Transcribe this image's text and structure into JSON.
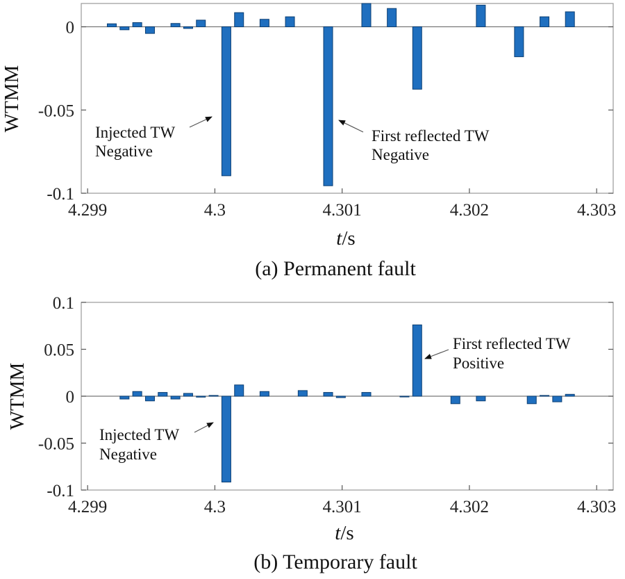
{
  "chart_data": [
    {
      "type": "bar",
      "panel": "a",
      "caption": "(a) Permanent fault",
      "ylabel": "WTMM",
      "xlabel_italic": "t",
      "xlabel_unit": "/s",
      "xlim": [
        4.29895,
        4.30313
      ],
      "ylim": [
        -0.1,
        0.014
      ],
      "xticks": [
        4.299,
        4.3,
        4.301,
        4.302,
        4.303
      ],
      "xtick_labels": [
        "4.299",
        "4.3",
        "4.301",
        "4.302",
        "4.303"
      ],
      "yticks": [
        0,
        -0.05,
        -0.1
      ],
      "ytick_labels": [
        "0",
        "-0.05",
        "-0.1"
      ],
      "bars": {
        "x": [
          4.29919,
          4.29929,
          4.29939,
          4.29949,
          4.29969,
          4.29979,
          4.29989,
          4.30009,
          4.30019,
          4.30039,
          4.30059,
          4.30089,
          4.30119,
          4.30139,
          4.30159,
          4.30209,
          4.30239,
          4.30259,
          4.30279
        ],
        "y": [
          0.0018,
          -0.0018,
          0.0025,
          -0.004,
          0.002,
          -0.001,
          0.004,
          -0.0895,
          0.0085,
          0.0045,
          0.006,
          -0.0955,
          0.014,
          0.011,
          -0.0375,
          0.013,
          -0.018,
          0.006,
          0.009
        ]
      },
      "annotations": [
        {
          "lines": [
            "Injected TW",
            "Negative"
          ],
          "target": [
            4.30009,
            -0.055
          ]
        },
        {
          "lines": [
            "First reflected TW",
            "Negative"
          ],
          "target": [
            4.30089,
            -0.057
          ]
        }
      ]
    },
    {
      "type": "bar",
      "panel": "b",
      "caption": "(b) Temporary fault",
      "ylabel": "WTMM",
      "xlabel_italic": "t",
      "xlabel_unit": "/s",
      "xlim": [
        4.29895,
        4.30313
      ],
      "ylim": [
        -0.1,
        0.1
      ],
      "xticks": [
        4.299,
        4.3,
        4.301,
        4.302,
        4.303
      ],
      "xtick_labels": [
        "4.299",
        "4.3",
        "4.301",
        "4.302",
        "4.303"
      ],
      "yticks": [
        0.1,
        0.05,
        0,
        -0.05,
        -0.1
      ],
      "ytick_labels": [
        "0.1",
        "0.05",
        "0",
        "-0.05",
        "-0.1"
      ],
      "bars": {
        "x": [
          4.29929,
          4.29939,
          4.29949,
          4.29959,
          4.29969,
          4.29979,
          4.29989,
          4.29999,
          4.30009,
          4.30019,
          4.30039,
          4.30069,
          4.30089,
          4.30099,
          4.30119,
          4.30149,
          4.30159,
          4.30189,
          4.30209,
          4.30249,
          4.30259,
          4.30269,
          4.30279
        ],
        "y": [
          -0.003,
          0.005,
          -0.005,
          0.004,
          -0.003,
          0.003,
          -0.001,
          0.0008,
          -0.0915,
          0.012,
          0.005,
          0.006,
          0.004,
          -0.0015,
          0.004,
          -0.0008,
          0.076,
          -0.008,
          -0.005,
          -0.008,
          0.0008,
          -0.006,
          0.002
        ]
      },
      "annotations": [
        {
          "lines": [
            "Injected TW",
            "Negative"
          ],
          "target": [
            4.30009,
            -0.03
          ]
        },
        {
          "lines": [
            "First reflected TW",
            "Positive"
          ],
          "target": [
            4.30159,
            0.045
          ]
        }
      ]
    }
  ]
}
